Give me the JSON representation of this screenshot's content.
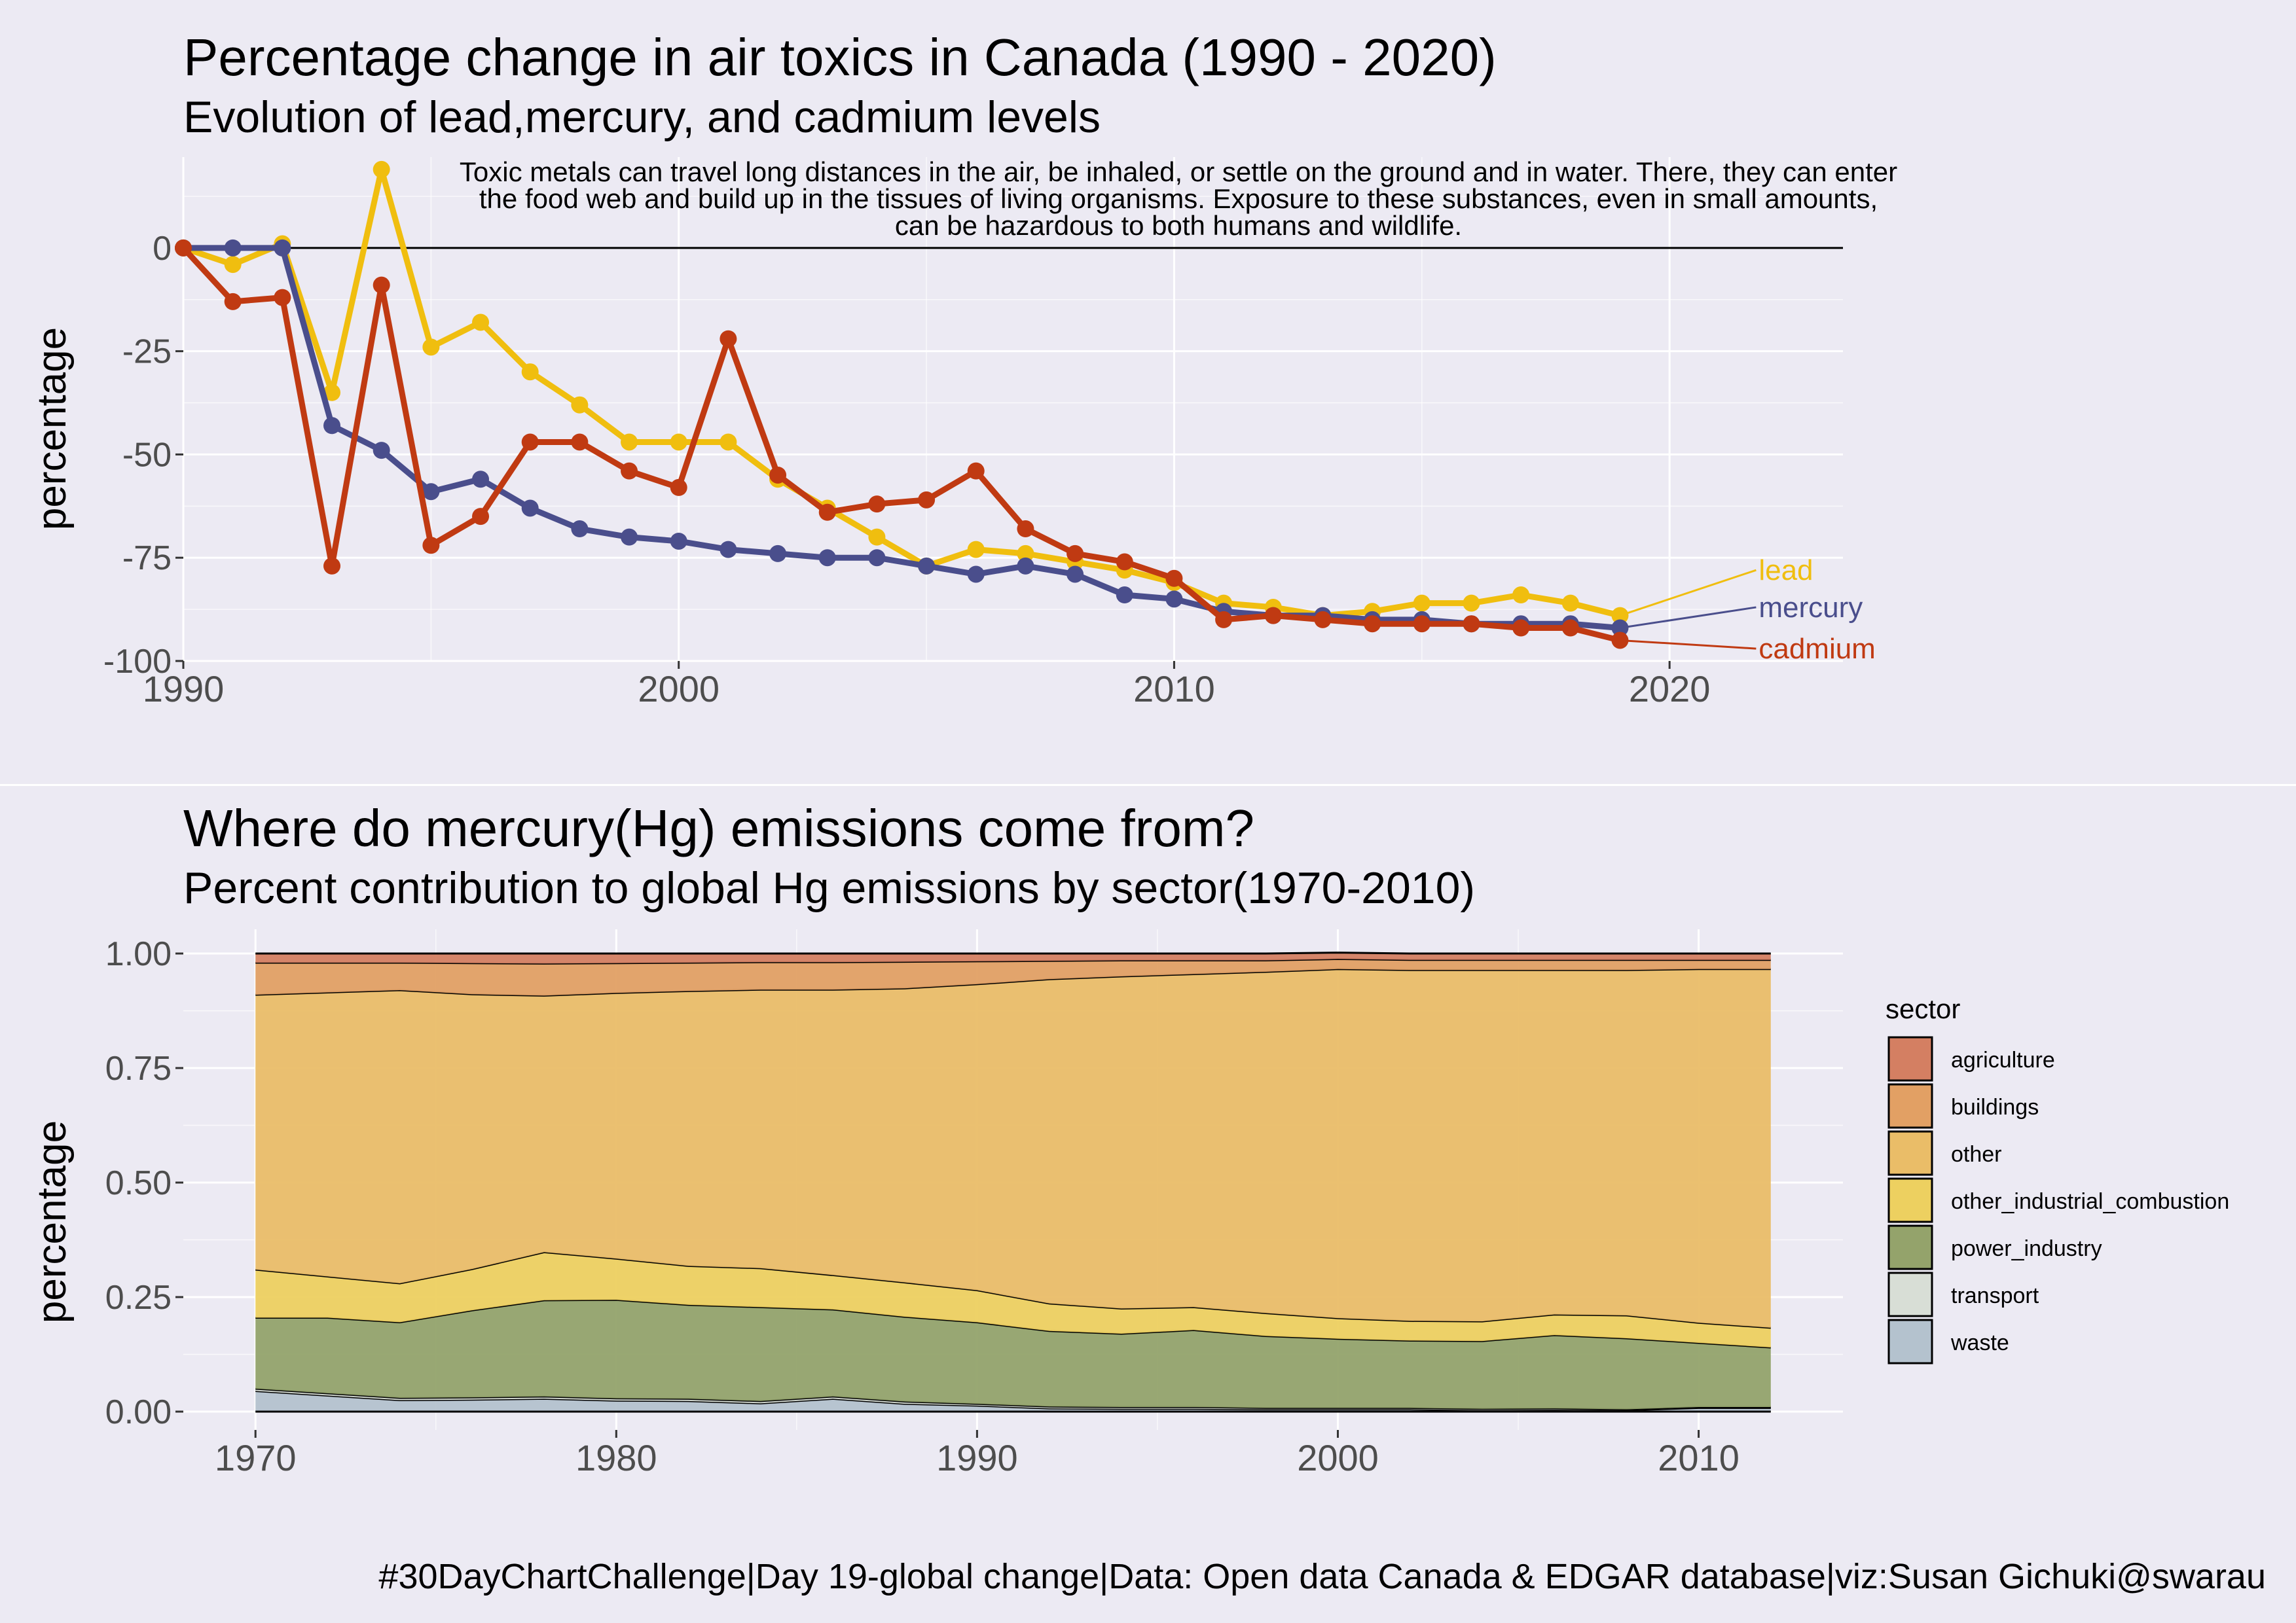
{
  "caption": "#30DayChartChallenge|Day 19-global change|Data: Open data Canada & EDGAR database|viz:Susan Gichuki@swarau",
  "chart_data": [
    {
      "type": "line",
      "title": "Percentage change in air toxics in Canada (1990 - 2020)",
      "subtitle": "Evolution of lead,mercury, and cadmium levels",
      "annotation": "Toxic metals can travel long distances in the air, be inhaled, or settle on the ground and in water. There, they can enter the food web and build up in the tissues of living organisms. Exposure to these substances, even in small amounts, can be hazardous to both humans and wildlife.",
      "xlabel": "",
      "ylabel": "percentage",
      "xlim": [
        1990,
        2023.5
      ],
      "ylim": [
        -100,
        22
      ],
      "xticks": [
        1990,
        2000,
        2010,
        2020
      ],
      "yticks": [
        0,
        -25,
        -50,
        -75,
        -100
      ],
      "grid": true,
      "x": [
        1990,
        1991,
        1992,
        1993,
        1994,
        1995,
        1996,
        1997,
        1998,
        1999,
        2000,
        2001,
        2002,
        2003,
        2004,
        2005,
        2006,
        2007,
        2008,
        2009,
        2010,
        2011,
        2012,
        2013,
        2014,
        2015,
        2016,
        2017,
        2018,
        2019
      ],
      "series": [
        {
          "name": "lead",
          "color": "#F0BE0F",
          "values": [
            0,
            -4,
            1,
            -35,
            19,
            -24,
            -18,
            -30,
            -38,
            -47,
            -47,
            -47,
            -56,
            -63,
            -70,
            -77,
            -73,
            -74,
            -76,
            -78,
            -81,
            -86,
            -87,
            -89,
            -88,
            -86,
            -86,
            -84,
            -86,
            -89
          ]
        },
        {
          "name": "mercury",
          "color": "#4A4E8C",
          "values": [
            0,
            0,
            0,
            -43,
            -49,
            -59,
            -56,
            -63,
            -68,
            -70,
            -71,
            -73,
            -74,
            -75,
            -75,
            -77,
            -79,
            -77,
            -79,
            -84,
            -85,
            -88,
            -89,
            -89,
            -90,
            -90,
            -91,
            -91,
            -91,
            -92
          ]
        },
        {
          "name": "cadmium",
          "color": "#C03A12",
          "values": [
            0,
            -13,
            -12,
            -77,
            -9,
            -72,
            -65,
            -47,
            -47,
            -54,
            -58,
            -22,
            -55,
            -64,
            -62,
            -61,
            -54,
            -68,
            -74,
            -76,
            -80,
            -90,
            -89,
            -90,
            -91,
            -91,
            -91,
            -92,
            -92,
            -95
          ]
        }
      ]
    },
    {
      "type": "area",
      "stacked": true,
      "title": "Where do mercury(Hg) emissions come from?",
      "subtitle": "Percent contribution to global Hg emissions by sector(1970-2010)",
      "xlabel": "",
      "ylabel": "percentage",
      "xlim": [
        1968,
        2014
      ],
      "ylim": [
        0,
        1
      ],
      "xticks": [
        1970,
        1980,
        1990,
        2000,
        2010
      ],
      "yticks": [
        0,
        0.25,
        0.5,
        0.75,
        1
      ],
      "ytick_labels": [
        "0.00",
        "0.25",
        "0.50",
        "0.75",
        "1.00"
      ],
      "grid": true,
      "legend_title": "sector",
      "legend_position": "right",
      "x": [
        1970,
        1972,
        1974,
        1976,
        1978,
        1980,
        1982,
        1984,
        1986,
        1988,
        1990,
        1992,
        1994,
        1996,
        1998,
        2000,
        2002,
        2004,
        2006,
        2008,
        2010,
        2012
      ],
      "series": [
        {
          "name": "agriculture",
          "color": "#D47F62",
          "values": [
            0.02,
            0.02,
            0.02,
            0.021,
            0.022,
            0.021,
            0.02,
            0.019,
            0.019,
            0.018,
            0.017,
            0.016,
            0.015,
            0.015,
            0.015,
            0.014,
            0.014,
            0.014,
            0.014,
            0.014,
            0.014,
            0.014
          ]
        },
        {
          "name": "buildings",
          "color": "#E2A064",
          "values": [
            0.07,
            0.065,
            0.06,
            0.068,
            0.07,
            0.065,
            0.062,
            0.06,
            0.06,
            0.058,
            0.05,
            0.04,
            0.035,
            0.03,
            0.025,
            0.022,
            0.022,
            0.022,
            0.022,
            0.022,
            0.02,
            0.02
          ]
        },
        {
          "name": "other",
          "color": "#EABD68",
          "values": [
            0.6,
            0.62,
            0.64,
            0.6,
            0.56,
            0.58,
            0.6,
            0.608,
            0.623,
            0.642,
            0.668,
            0.708,
            0.725,
            0.727,
            0.745,
            0.762,
            0.766,
            0.767,
            0.752,
            0.754,
            0.772,
            0.783
          ]
        },
        {
          "name": "other_industrial_combustion",
          "color": "#EDD060",
          "values": [
            0.105,
            0.09,
            0.085,
            0.09,
            0.105,
            0.09,
            0.085,
            0.085,
            0.075,
            0.075,
            0.07,
            0.06,
            0.055,
            0.05,
            0.05,
            0.045,
            0.043,
            0.043,
            0.045,
            0.05,
            0.044,
            0.043
          ]
        },
        {
          "name": "power_industry",
          "color": "#94A36B",
          "values": [
            0.155,
            0.165,
            0.165,
            0.19,
            0.21,
            0.215,
            0.205,
            0.205,
            0.19,
            0.185,
            0.178,
            0.165,
            0.16,
            0.168,
            0.157,
            0.151,
            0.147,
            0.148,
            0.16,
            0.155,
            0.14,
            0.13
          ]
        },
        {
          "name": "transport",
          "color": "#D8DED6",
          "values": [
            0.005,
            0.005,
            0.005,
            0.005,
            0.005,
            0.005,
            0.005,
            0.005,
            0.005,
            0.005,
            0.004,
            0.004,
            0.004,
            0.004,
            0.003,
            0.003,
            0.003,
            0.003,
            0.003,
            0.002,
            0.002,
            0.002
          ]
        },
        {
          "name": "waste",
          "color": "#B4C2CE",
          "values": [
            0.045,
            0.035,
            0.025,
            0.026,
            0.028,
            0.024,
            0.023,
            0.018,
            0.028,
            0.017,
            0.013,
            0.007,
            0.006,
            0.006,
            0.005,
            0.005,
            0.005,
            0.003,
            0.004,
            0.003,
            0.008,
            0.008
          ]
        }
      ]
    }
  ]
}
